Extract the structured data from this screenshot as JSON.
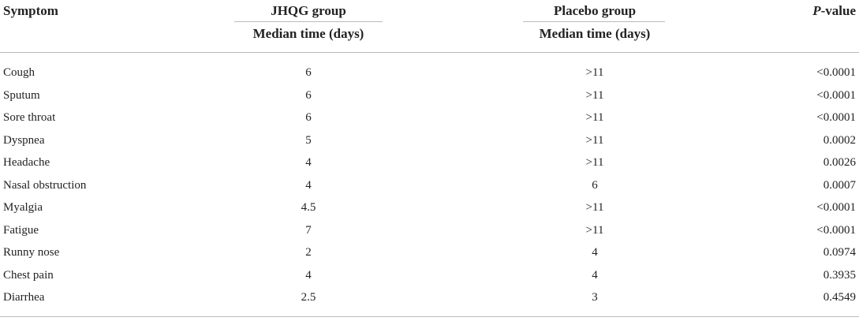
{
  "table": {
    "header": {
      "symptom": "Symptom",
      "group1": "JHQG group",
      "group2": "Placebo group",
      "pvalue": "P-value",
      "subheader": [
        "Median time (days)",
        "Median time (days)"
      ]
    },
    "rows": [
      [
        "Cough",
        "6",
        ">11",
        "<0.0001"
      ],
      [
        "Sputum",
        "6",
        ">11",
        "<0.0001"
      ],
      [
        "Sore throat",
        "6",
        ">11",
        "<0.0001"
      ],
      [
        "Dyspnea",
        "5",
        ">11",
        "0.0002"
      ],
      [
        "Headache",
        "4",
        ">11",
        "0.0026"
      ],
      [
        "Nasal obstruction",
        "4",
        "6",
        "0.0007"
      ],
      [
        "Myalgia",
        "4.5",
        ">11",
        "<0.0001"
      ],
      [
        "Fatigue",
        "7",
        ">11",
        "<0.0001"
      ],
      [
        "Runny nose",
        "2",
        "4",
        "0.0974"
      ],
      [
        "Chest pain",
        "4",
        "4",
        "0.3935"
      ],
      [
        "Diarrhea",
        "2.5",
        "3",
        "0.4549"
      ]
    ]
  }
}
